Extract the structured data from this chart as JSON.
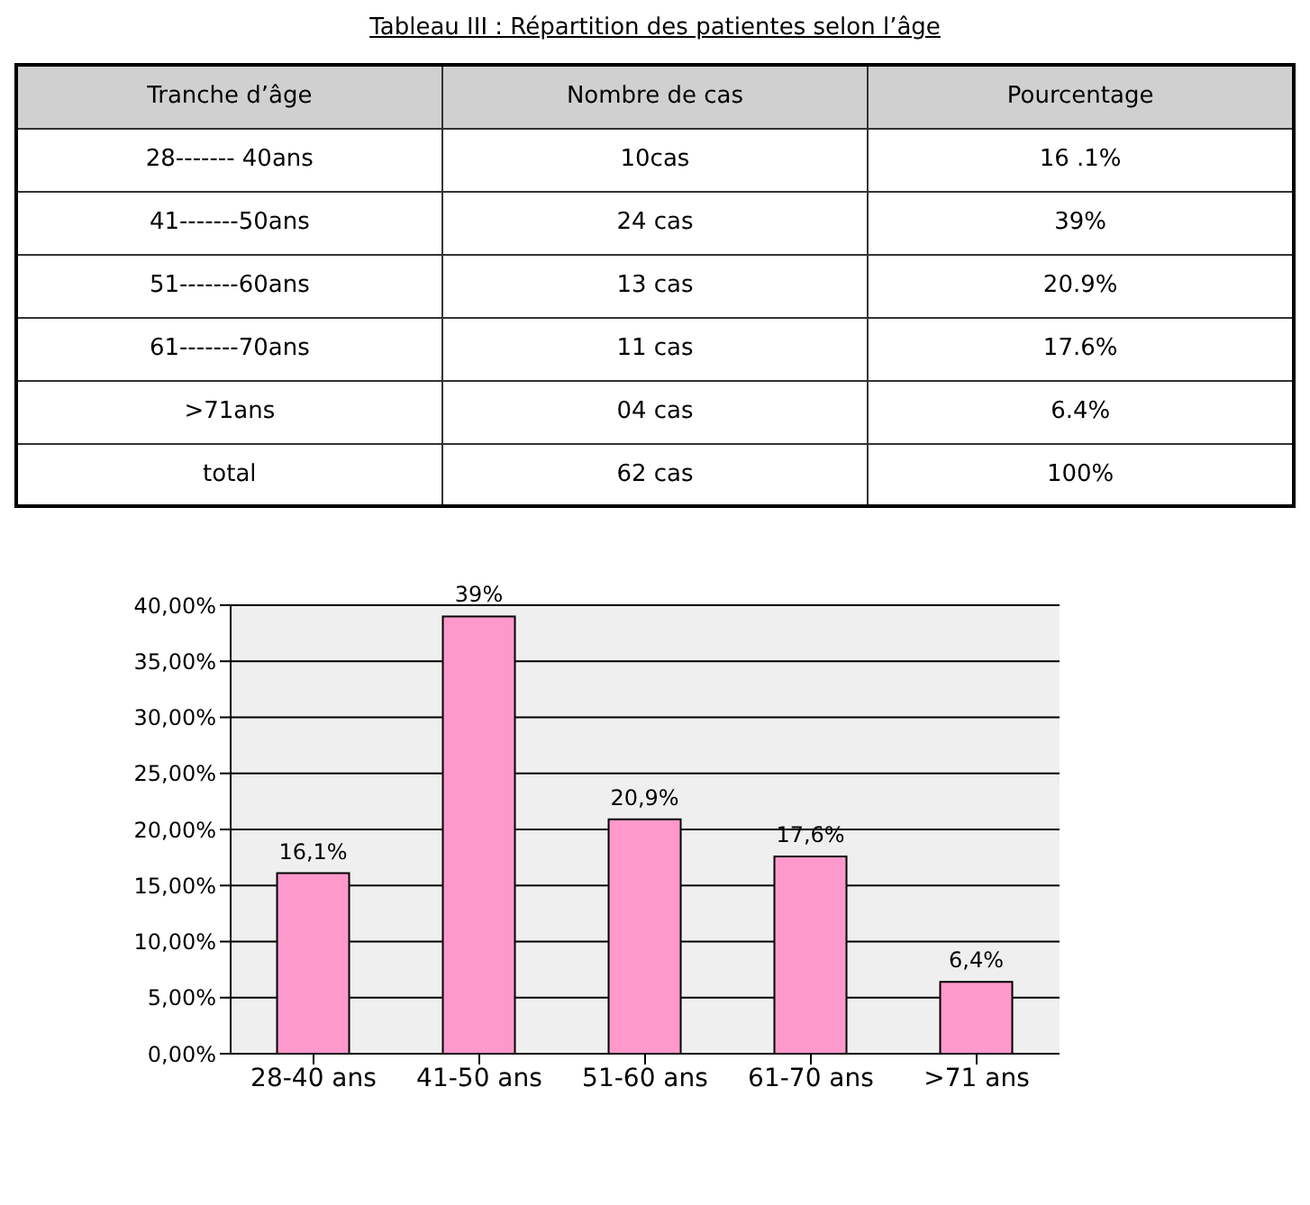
{
  "chart_data": {
    "type": "bar",
    "title": "Tableau III : Répartition des patientes selon l’âge",
    "annotations": [
      "Tranche d’âge",
      "Nombre de cas",
      "Pourcentage",
      "28------- 40ans",
      "10cas",
      "16 .1%",
      "41-------50ans",
      "24 cas",
      "39%",
      "51-------60ans",
      "13 cas",
      "20.9%",
      "61-------70ans",
      "11 cas",
      "17.6%",
      ">71ans",
      "04 cas",
      "6.4%",
      "total",
      "62 cas",
      "100%"
    ],
    "categories": [
      "28-40 ans",
      "41-50 ans",
      "51-60 ans",
      "61-70 ans",
      ">71 ans"
    ],
    "values": [
      16.1,
      39,
      20.9,
      17.6,
      6.4
    ],
    "value_labels": [
      "16,1%",
      "39%",
      "20,9%",
      "17,6%",
      "6,4%"
    ],
    "color": "#ff99cc",
    "ylim": [
      0,
      40
    ],
    "yticks": [
      {
        "value": 0,
        "label": "0,00%"
      },
      {
        "value": 5,
        "label": "5,00%"
      },
      {
        "value": 10,
        "label": "10,00%"
      },
      {
        "value": 15,
        "label": "15,00%"
      },
      {
        "value": 20,
        "label": "20,00%"
      },
      {
        "value": 25,
        "label": "25,00%"
      },
      {
        "value": 30,
        "label": "30,00%"
      },
      {
        "value": 35,
        "label": "35,00%"
      },
      {
        "value": 40,
        "label": "40,00%"
      }
    ],
    "grid": "y",
    "legend": false
  }
}
